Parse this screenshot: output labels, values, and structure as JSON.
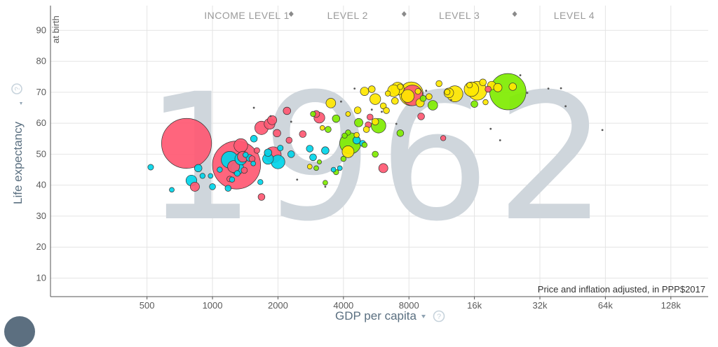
{
  "chart_data": {
    "type": "scatter",
    "year": "1962",
    "x_scale": "log",
    "x_ticks": [
      {
        "value": 500,
        "label": "500"
      },
      {
        "value": 1000,
        "label": "1000"
      },
      {
        "value": 2000,
        "label": "2000"
      },
      {
        "value": 4000,
        "label": "4000"
      },
      {
        "value": 8000,
        "label": "8000"
      },
      {
        "value": 16000,
        "label": "16k"
      },
      {
        "value": 32000,
        "label": "32k"
      },
      {
        "value": 64000,
        "label": "64k"
      },
      {
        "value": 128000,
        "label": "128k"
      }
    ],
    "y_ticks": [
      10,
      20,
      30,
      40,
      50,
      60,
      70,
      80,
      90
    ],
    "xlim": [
      180,
      190000
    ],
    "ylim": [
      4,
      98
    ],
    "grid": true,
    "xlabel": "GDP per capita",
    "ylabel": "Life expectancy",
    "ylabel_sub": "at birth",
    "note": "Price and inflation adjusted, in PPP$2017",
    "income_levels": [
      {
        "label": "INCOME LEVEL 1",
        "boundary": 2300
      },
      {
        "label": "LEVEL 2",
        "boundary": 7600
      },
      {
        "label": "LEVEL 3",
        "boundary": 24500
      },
      {
        "label": "LEVEL 4",
        "boundary": null
      }
    ],
    "colors": {
      "red": "#ff5872",
      "cyan": "#00d5e9",
      "green": "#7feb00",
      "yellow": "#ffe700",
      "outline": "#333333"
    },
    "series": [
      {
        "color": "red",
        "points": [
          [
            760,
            53.5,
            530
          ],
          [
            1290,
            46.5,
            490
          ],
          [
            1350,
            52.8,
            40
          ],
          [
            1900,
            49.8,
            55
          ],
          [
            1380,
            49.2,
            25
          ],
          [
            1250,
            46,
            30
          ],
          [
            1680,
            58.5,
            38
          ],
          [
            1880,
            61,
            18
          ],
          [
            1830,
            59.8,
            25
          ],
          [
            2200,
            64,
            12
          ],
          [
            2600,
            56.5,
            10
          ],
          [
            3000,
            63,
            10
          ],
          [
            3100,
            61.8,
            25
          ],
          [
            1980,
            56.8,
            12
          ],
          [
            5200,
            59.5,
            8
          ],
          [
            5300,
            62,
            8
          ],
          [
            6100,
            45.5,
            18
          ],
          [
            8300,
            69,
            90
          ],
          [
            9100,
            62.2,
            10
          ],
          [
            18500,
            71,
            8
          ],
          [
            11500,
            55.2,
            6
          ],
          [
            830,
            39.5,
            18
          ],
          [
            1680,
            36.2,
            10
          ],
          [
            1520,
            48.5,
            8
          ],
          [
            1600,
            51.2,
            7
          ],
          [
            1400,
            44.8,
            8
          ],
          [
            2250,
            54.5,
            8
          ],
          [
            1200,
            42,
            7
          ]
        ]
      },
      {
        "color": "cyan",
        "points": [
          [
            1200,
            48.2,
            60
          ],
          [
            1300,
            45.5,
            35
          ],
          [
            1350,
            48.5,
            30
          ],
          [
            2000,
            47.5,
            40
          ],
          [
            1800,
            48.5,
            25
          ],
          [
            2300,
            50,
            10
          ],
          [
            4600,
            54.5,
            12
          ],
          [
            3300,
            51.2,
            12
          ],
          [
            2800,
            51.8,
            10
          ],
          [
            2900,
            49,
            10
          ],
          [
            1550,
            55,
            10
          ],
          [
            1480,
            48.8,
            10
          ],
          [
            800,
            41.5,
            25
          ],
          [
            860,
            45.5,
            12
          ],
          [
            1800,
            50.5,
            12
          ],
          [
            3600,
            45,
            5
          ],
          [
            1000,
            39.5,
            8
          ],
          [
            900,
            43,
            6
          ],
          [
            1230,
            41.8,
            6
          ],
          [
            1300,
            43.8,
            7
          ],
          [
            1180,
            39,
            8
          ],
          [
            1660,
            41,
            6
          ],
          [
            2050,
            52,
            7
          ],
          [
            520,
            45.8,
            7
          ],
          [
            650,
            38.5,
            5
          ],
          [
            980,
            43,
            5
          ],
          [
            1080,
            45,
            6
          ],
          [
            1420,
            49.8,
            6
          ],
          [
            4900,
            53.5,
            8
          ],
          [
            3850,
            45.5,
            5
          ],
          [
            1540,
            47,
            5
          ]
        ]
      },
      {
        "color": "green",
        "points": [
          [
            22800,
            70.2,
            280
          ],
          [
            4300,
            53.5,
            95
          ],
          [
            5800,
            59.2,
            45
          ],
          [
            10300,
            65.8,
            20
          ],
          [
            4700,
            60.2,
            15
          ],
          [
            3700,
            61.5,
            12
          ],
          [
            3400,
            58,
            8
          ],
          [
            16000,
            66.2,
            10
          ],
          [
            7300,
            56.8,
            10
          ],
          [
            9300,
            68,
            8
          ],
          [
            3300,
            40.8,
            5
          ],
          [
            4000,
            48.5,
            6
          ],
          [
            3000,
            45.5,
            5
          ],
          [
            5600,
            50,
            8
          ],
          [
            3700,
            44.2,
            6
          ],
          [
            4200,
            57,
            6
          ],
          [
            3100,
            47.5,
            4
          ],
          [
            5000,
            53,
            6
          ],
          [
            2900,
            63,
            6
          ],
          [
            4050,
            56,
            6
          ]
        ]
      },
      {
        "color": "yellow",
        "points": [
          [
            16500,
            70.5,
            75
          ],
          [
            13000,
            69.5,
            55
          ],
          [
            15500,
            71,
            45
          ],
          [
            8200,
            69.5,
            120
          ],
          [
            7900,
            68.8,
            35
          ],
          [
            6800,
            70.5,
            30
          ],
          [
            7100,
            71.2,
            35
          ],
          [
            12200,
            69.8,
            20
          ],
          [
            6900,
            67.2,
            10
          ],
          [
            9000,
            66.6,
            15
          ],
          [
            5600,
            67.8,
            25
          ],
          [
            5000,
            70.3,
            15
          ],
          [
            5400,
            71,
            10
          ],
          [
            17500,
            73.2,
            10
          ],
          [
            19200,
            72.2,
            15
          ],
          [
            20500,
            71.5,
            15
          ],
          [
            24000,
            71.8,
            12
          ],
          [
            4200,
            50.8,
            30
          ],
          [
            3500,
            66.5,
            20
          ],
          [
            5600,
            60.5,
            10
          ],
          [
            4650,
            64.2,
            10
          ],
          [
            6100,
            65.6,
            8
          ],
          [
            9900,
            68.6,
            8
          ],
          [
            12000,
            70.1,
            7
          ],
          [
            15200,
            72.3,
            7
          ],
          [
            7300,
            71.8,
            7
          ],
          [
            2800,
            46,
            5
          ],
          [
            5100,
            58,
            8
          ],
          [
            6400,
            69.6,
            6
          ],
          [
            8800,
            70.3,
            7
          ],
          [
            4200,
            63,
            5
          ],
          [
            3200,
            58.5,
            5
          ],
          [
            18000,
            66.8,
            6
          ],
          [
            11000,
            72.8,
            8
          ],
          [
            6300,
            64.1,
            8
          ],
          [
            4600,
            56.2,
            6
          ]
        ]
      }
    ],
    "tiny_points": [
      [
        40000,
        71.3
      ],
      [
        62000,
        57.8
      ],
      [
        42000,
        65.5
      ],
      [
        26000,
        75.5
      ],
      [
        19000,
        58.2
      ],
      [
        21000,
        54.5
      ],
      [
        35000,
        71.2
      ],
      [
        28000,
        69.8
      ],
      [
        12500,
        67.5
      ],
      [
        4500,
        71.2
      ],
      [
        6000,
        63.7
      ],
      [
        9600,
        70.5
      ],
      [
        3300,
        39.5
      ],
      [
        2450,
        41.8
      ],
      [
        1550,
        65
      ],
      [
        1850,
        62.3
      ],
      [
        2300,
        60.5
      ],
      [
        3900,
        67
      ],
      [
        5400,
        64.4
      ],
      [
        7000,
        59.8
      ]
    ]
  },
  "icons": {
    "help": "question-circle-icon",
    "dropdown": "caret-down-icon"
  }
}
